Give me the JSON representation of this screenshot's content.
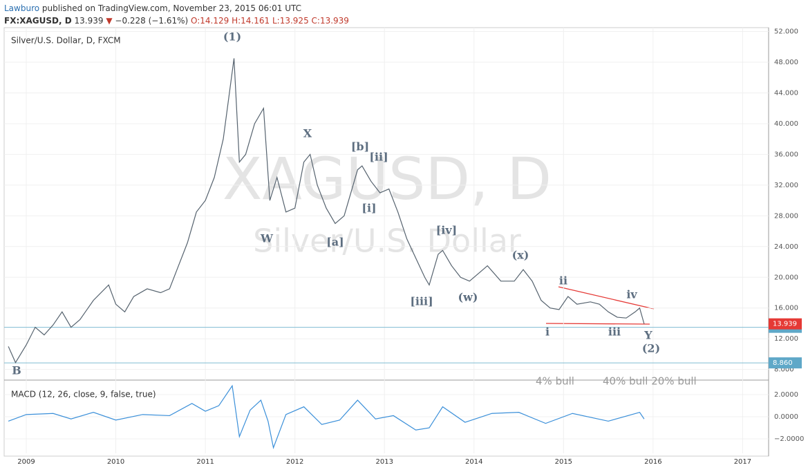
{
  "header": {
    "author": "Lawburo",
    "published": "published on TradingView.com, November 23, 2015 06:01 UTC",
    "symbol": "FX:XAGUSD, D",
    "last": "13.939",
    "arrow": "▼",
    "change": "−0.228 (−1.61%)",
    "ohlc": [
      "O:14.129",
      "H:14.161",
      "L:13.925",
      "C:13.939"
    ]
  },
  "watermark": [
    "XAGUSD, D",
    "Silver/U.S. Dollar"
  ],
  "annotations": [
    "(1)",
    "W",
    "X",
    "[a]",
    "[b]",
    "[i]",
    "[ii]",
    "[iii]",
    "[iv]",
    "(w)",
    "(x)",
    "i",
    "ii",
    "iii",
    "iv",
    "Y",
    "(2)",
    "B"
  ],
  "notes": [
    "4%  bull",
    "40%  bull 20%  bull"
  ],
  "chart_data": [
    {
      "type": "line",
      "x": [
        2008.8,
        2008.88,
        2009.0,
        2009.1,
        2009.2,
        2009.3,
        2009.4,
        2009.5,
        2009.6,
        2009.75,
        2009.92,
        2010.0,
        2010.1,
        2010.2,
        2010.35,
        2010.5,
        2010.6,
        2010.7,
        2010.8,
        2010.9,
        2011.0,
        2011.1,
        2011.2,
        2011.32,
        2011.38,
        2011.45,
        2011.55,
        2011.65,
        2011.72,
        2011.8,
        2011.9,
        2012.0,
        2012.1,
        2012.17,
        2012.25,
        2012.35,
        2012.45,
        2012.55,
        2012.7,
        2012.75,
        2012.85,
        2012.95,
        2013.05,
        2013.15,
        2013.25,
        2013.35,
        2013.45,
        2013.5,
        2013.6,
        2013.65,
        2013.75,
        2013.85,
        2013.95,
        2014.1,
        2014.15,
        2014.3,
        2014.45,
        2014.55,
        2014.65,
        2014.75,
        2014.85,
        2014.95,
        2015.05,
        2015.15,
        2015.3,
        2015.4,
        2015.5,
        2015.6,
        2015.7,
        2015.8,
        2015.85,
        2015.9
      ],
      "series": [
        {
          "name": "Silver/U.S. Dollar, D, FXCM",
          "color": "#55626e",
          "values": [
            11.0,
            8.9,
            11.2,
            13.5,
            12.5,
            13.8,
            15.5,
            13.5,
            14.5,
            17.0,
            19.0,
            16.5,
            15.5,
            17.5,
            18.5,
            18.0,
            18.5,
            21.5,
            24.5,
            28.5,
            30.0,
            33.0,
            38.0,
            48.5,
            35.0,
            36.0,
            40.0,
            42.0,
            30.0,
            33.0,
            28.5,
            29.0,
            35.0,
            36.0,
            32.0,
            29.0,
            27.0,
            28.0,
            34.0,
            34.5,
            32.5,
            31.0,
            31.5,
            28.5,
            25.0,
            22.5,
            20.0,
            19.0,
            23.0,
            23.5,
            21.5,
            20.0,
            19.5,
            21.0,
            21.5,
            19.5,
            19.5,
            21.0,
            19.5,
            17.0,
            16.0,
            15.8,
            17.5,
            16.5,
            16.8,
            16.5,
            15.5,
            14.8,
            14.7,
            15.5,
            16.0,
            13.939
          ]
        }
      ],
      "last": 13.939,
      "hlines": [
        13.491,
        {
          "value": 8.86,
          "label": "8.860"
        }
      ],
      "xlim": [
        2008.753,
        2017.29
      ],
      "xticks": [
        2009,
        2010,
        2011,
        2012,
        2013,
        2014,
        2015,
        2016,
        2017
      ],
      "ylim": [
        6.8,
        52.5
      ],
      "yticks": [
        {
          "value": 8,
          "label": "8.000"
        },
        {
          "value": 12,
          "label": "12.000"
        },
        {
          "value": 16,
          "label": "16.000"
        },
        {
          "value": 20,
          "label": "20.000"
        },
        {
          "value": 24,
          "label": "24.000"
        },
        {
          "value": 28,
          "label": "28.000"
        },
        {
          "value": 32,
          "label": "32.000"
        },
        {
          "value": 36,
          "label": "36.000"
        },
        {
          "value": 40,
          "label": "40.000"
        },
        {
          "value": 44,
          "label": "44.000"
        },
        {
          "value": 48,
          "label": "48.000"
        },
        {
          "value": 52,
          "label": "52.000"
        }
      ],
      "grid": true
    },
    {
      "type": "line",
      "x": [
        2008.8,
        2009.0,
        2009.3,
        2009.5,
        2009.75,
        2010.0,
        2010.3,
        2010.6,
        2010.85,
        2011.0,
        2011.15,
        2011.3,
        2011.38,
        2011.5,
        2011.62,
        2011.7,
        2011.76,
        2011.9,
        2012.1,
        2012.3,
        2012.5,
        2012.7,
        2012.9,
        2013.1,
        2013.35,
        2013.5,
        2013.65,
        2013.9,
        2014.2,
        2014.5,
        2014.8,
        2015.1,
        2015.5,
        2015.85,
        2015.9
      ],
      "series": [
        {
          "name": "MACD (12, 26, close, 9, false, true)",
          "color": "#3a8fd9",
          "values": [
            -0.4,
            0.2,
            0.3,
            -0.2,
            0.4,
            -0.3,
            0.2,
            0.1,
            1.2,
            0.5,
            1.0,
            2.8,
            -1.8,
            0.6,
            1.5,
            -0.4,
            -2.8,
            0.2,
            0.9,
            -0.7,
            -0.3,
            1.5,
            -0.2,
            0.1,
            -1.2,
            -1.0,
            0.9,
            -0.5,
            0.3,
            0.4,
            -0.6,
            0.3,
            -0.4,
            0.4,
            -0.2
          ]
        }
      ],
      "xlim": [
        2008.753,
        2017.29
      ],
      "ylim": [
        -3.31,
        3.19
      ],
      "yticks": [
        {
          "value": 2,
          "label": "2.0000"
        },
        {
          "value": 0,
          "label": "0.0000"
        },
        {
          "value": -2,
          "label": "−2.0000"
        }
      ],
      "grid": true
    }
  ]
}
